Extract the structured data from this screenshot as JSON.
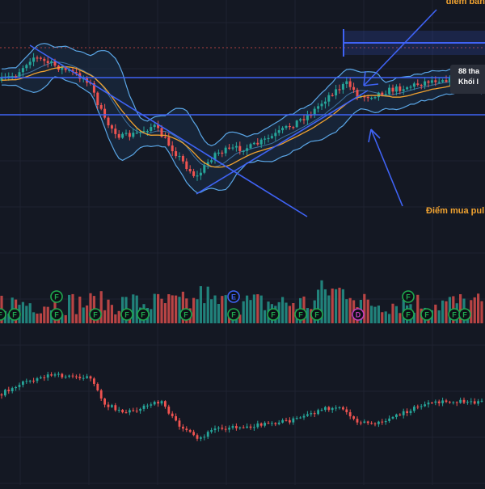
{
  "annotations": {
    "sell_point": "điểm bán",
    "buy_point": "Điểm mua pul",
    "tooltip_line1": "88 tha",
    "tooltip_line2": "Khối l"
  },
  "colors": {
    "background": "#141823",
    "grid": "#1e2230",
    "up": "#26a69a",
    "down": "#ef5350",
    "bollinger": "#5aa6e6",
    "bollinger_fill": "#1b3350",
    "ma": "#f0a230",
    "drawing": "#3f63f5",
    "annotation": "#f0a230",
    "event_marker": "#1faa4e",
    "dividend_marker": "#c33fbf",
    "earnings_marker": "#3f63f5"
  },
  "chart_data": {
    "type": "candlestick",
    "indicators": [
      "bollinger_bands",
      "moving_average",
      "volume",
      "secondary_candles"
    ],
    "grid": true,
    "drawings": [
      "descending trendline",
      "ascending trendline",
      "horizontal resistance",
      "horizontal support",
      "annotation arrows",
      "price range box"
    ],
    "event_markers": [
      "F",
      "F",
      "F",
      "F",
      "F",
      "F",
      "F",
      "E",
      "F",
      "F",
      "F",
      "F",
      "D",
      "F",
      "F",
      "F",
      "F",
      "F",
      "F"
    ]
  }
}
